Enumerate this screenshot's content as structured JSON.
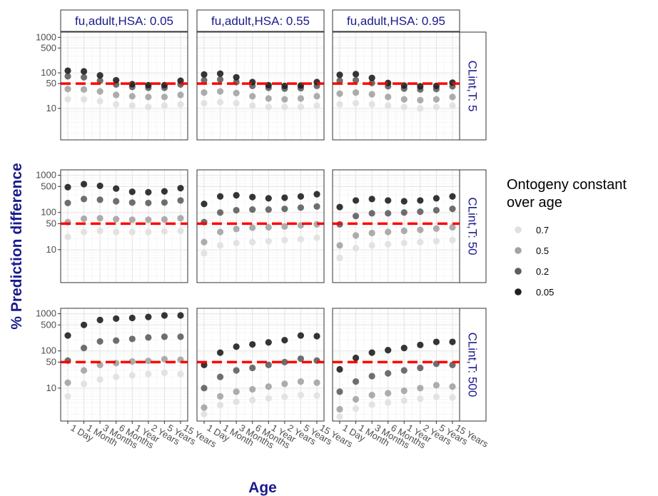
{
  "chart_data": {
    "type": "scatter",
    "xlabel": "Age",
    "ylabel": "% Prediction difference",
    "y_scale": "log",
    "y_ticks": [
      10,
      50,
      100,
      500,
      1000
    ],
    "y_tick_labels": [
      "10",
      "50",
      "100",
      "500",
      "1000"
    ],
    "categories": [
      "1 Day",
      "1 Month",
      "3 Months",
      "6 Months",
      "1 Year",
      "2 Years",
      "5 Years",
      "15 Years"
    ],
    "reference_line": 50,
    "reference_line_color": "#ff0000",
    "column_facets": [
      "fu,adult,HSA: 0.05",
      "fu,adult,HSA: 0.55",
      "fu,adult,HSA: 0.95"
    ],
    "row_facets": [
      "CLint,T: 5",
      "CLint,T: 50",
      "CLint,T: 500"
    ],
    "legend": {
      "title": "Ontogeny constant over age",
      "title_lines": [
        "Ontogeny constant",
        "over age"
      ],
      "placement": "right",
      "entries": [
        {
          "label": "0.7",
          "color": "#e0e0e0"
        },
        {
          "label": "0.5",
          "color": "#a3a3a3"
        },
        {
          "label": "0.2",
          "color": "#5e5e5e"
        },
        {
          "label": "0.05",
          "color": "#1f1f1f"
        }
      ]
    },
    "series_order": [
      "0.7",
      "0.5",
      "0.2",
      "0.05"
    ],
    "panels": [
      {
        "row": 0,
        "col": 0,
        "series": {
          "0.7": [
            18,
            18,
            16,
            13,
            12,
            11,
            12,
            13
          ],
          "0.5": [
            35,
            34,
            30,
            24,
            22,
            21,
            21,
            24
          ],
          "0.2": [
            80,
            75,
            60,
            47,
            40,
            38,
            38,
            47
          ],
          "0.05": [
            115,
            110,
            85,
            62,
            48,
            45,
            45,
            60
          ]
        }
      },
      {
        "row": 0,
        "col": 1,
        "series": {
          "0.7": [
            14,
            15,
            14,
            12,
            11,
            11,
            11,
            12
          ],
          "0.5": [
            28,
            30,
            27,
            22,
            19,
            18,
            19,
            22
          ],
          "0.2": [
            62,
            65,
            55,
            43,
            38,
            36,
            37,
            43
          ],
          "0.05": [
            90,
            95,
            75,
            55,
            45,
            43,
            44,
            55
          ]
        }
      },
      {
        "row": 0,
        "col": 2,
        "series": {
          "0.7": [
            13,
            14,
            13,
            12,
            11,
            10,
            11,
            12
          ],
          "0.5": [
            26,
            28,
            25,
            21,
            18,
            17,
            18,
            21
          ],
          "0.2": [
            60,
            62,
            52,
            42,
            36,
            34,
            35,
            42
          ],
          "0.05": [
            88,
            92,
            72,
            52,
            44,
            42,
            43,
            53
          ]
        }
      },
      {
        "row": 1,
        "col": 0,
        "series": {
          "0.7": [
            22,
            30,
            32,
            30,
            30,
            30,
            31,
            32
          ],
          "0.5": [
            55,
            68,
            70,
            66,
            64,
            64,
            65,
            70
          ],
          "0.2": [
            180,
            230,
            220,
            200,
            185,
            180,
            185,
            210
          ],
          "0.05": [
            480,
            580,
            520,
            440,
            360,
            350,
            370,
            450
          ]
        }
      },
      {
        "row": 1,
        "col": 1,
        "series": {
          "0.7": [
            8,
            13,
            15,
            16,
            17,
            18,
            19,
            21
          ],
          "0.5": [
            16,
            30,
            36,
            39,
            40,
            42,
            45,
            48
          ],
          "0.2": [
            55,
            100,
            115,
            120,
            120,
            125,
            135,
            145
          ],
          "0.05": [
            170,
            270,
            290,
            260,
            240,
            250,
            270,
            310
          ]
        }
      },
      {
        "row": 1,
        "col": 2,
        "series": {
          "0.7": [
            6,
            11,
            13,
            14,
            15,
            16,
            17,
            18
          ],
          "0.5": [
            13,
            24,
            28,
            30,
            32,
            34,
            37,
            40
          ],
          "0.2": [
            48,
            80,
            95,
            95,
            100,
            105,
            115,
            125
          ],
          "0.05": [
            140,
            210,
            230,
            210,
            200,
            210,
            240,
            270
          ]
        }
      },
      {
        "row": 2,
        "col": 0,
        "series": {
          "0.7": [
            6,
            13,
            17,
            20,
            22,
            24,
            26,
            24
          ],
          "0.5": [
            14,
            30,
            42,
            47,
            52,
            54,
            60,
            58
          ],
          "0.2": [
            55,
            120,
            180,
            190,
            210,
            230,
            240,
            240
          ],
          "0.05": [
            260,
            500,
            680,
            740,
            770,
            820,
            900,
            900
          ]
        }
      },
      {
        "row": 2,
        "col": 1,
        "series": {
          "0.7": [
            2,
            3.5,
            4.3,
            4.8,
            5.3,
            5.8,
            6.5,
            6.3
          ],
          "0.5": [
            3,
            6,
            8,
            9.3,
            11,
            13,
            15,
            14
          ],
          "0.2": [
            10,
            20,
            30,
            35,
            42,
            50,
            62,
            55
          ],
          "0.05": [
            42,
            90,
            130,
            150,
            170,
            195,
            260,
            250
          ]
        }
      },
      {
        "row": 2,
        "col": 2,
        "series": {
          "0.7": [
            1.7,
            2.8,
            3.6,
            4.1,
            4.6,
            5.2,
            5.8,
            5.6
          ],
          "0.5": [
            2.7,
            5,
            6.5,
            7.3,
            8.5,
            10,
            12,
            11
          ],
          "0.2": [
            8,
            15,
            21,
            25,
            30,
            35,
            45,
            42
          ],
          "0.05": [
            32,
            65,
            90,
            105,
            120,
            145,
            175,
            175
          ]
        }
      }
    ]
  }
}
